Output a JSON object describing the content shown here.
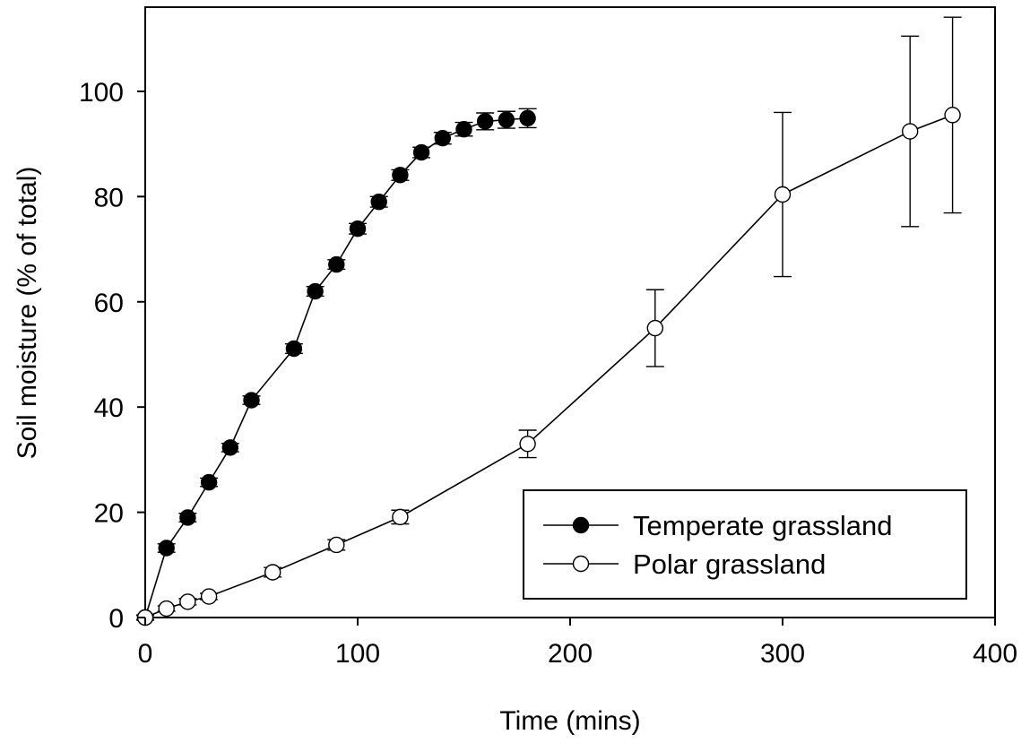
{
  "chart_data": {
    "type": "line",
    "xlabel": "Time (mins)",
    "ylabel": "Soil moisture (% of total)",
    "xlim": [
      0,
      400
    ],
    "ylim": [
      0,
      116
    ],
    "xticks": [
      0,
      100,
      200,
      300,
      400
    ],
    "yticks": [
      0,
      20,
      40,
      60,
      80,
      100
    ],
    "grid": false,
    "legend_position": "bottom-right",
    "series": [
      {
        "name": "Temperate grassland",
        "marker": "filled-circle",
        "color": "#000000",
        "x": [
          0,
          10,
          20,
          30,
          40,
          50,
          70,
          80,
          90,
          100,
          110,
          120,
          130,
          140,
          150,
          160,
          170,
          180
        ],
        "y": [
          0,
          13.2,
          19,
          25.7,
          32.3,
          41.3,
          51.1,
          62,
          67.1,
          73.9,
          79,
          84.1,
          88.4,
          91.1,
          92.8,
          94.3,
          94.6,
          94.9
        ],
        "error": [
          0.5,
          0.8,
          0.8,
          0.8,
          0.8,
          0.8,
          0.9,
          0.9,
          0.9,
          1.0,
          1.0,
          1.0,
          1.0,
          1.1,
          1.3,
          1.6,
          1.6,
          1.8
        ]
      },
      {
        "name": "Polar grassland",
        "marker": "open-circle",
        "color": "#000000",
        "x": [
          0,
          10,
          20,
          30,
          60,
          90,
          120,
          180,
          240,
          300,
          360,
          380
        ],
        "y": [
          0,
          1.7,
          3,
          4,
          8.6,
          13.8,
          19.1,
          33,
          55,
          80.4,
          92.4,
          95.5
        ],
        "error": [
          0.4,
          0.5,
          0.6,
          0.6,
          0.9,
          1.0,
          1.3,
          2.6,
          7.3,
          15.6,
          18.1,
          18.6
        ]
      }
    ]
  }
}
